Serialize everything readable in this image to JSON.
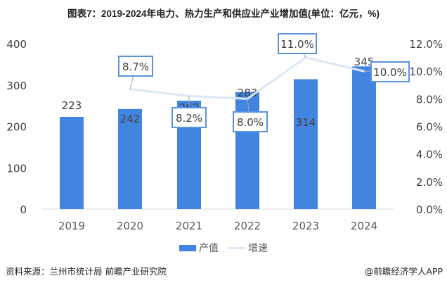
{
  "title": "图表7：2019-2024年电力、热力生产和供应业产业增加值(单位：亿元，%)",
  "chart_data": {
    "type": "bar",
    "title": "图表7：2019-2024年电力、热力生产和供应业产业增加值(单位：亿元，%)",
    "categories": [
      "2019",
      "2020",
      "2021",
      "2022",
      "2023",
      "2024"
    ],
    "series": [
      {
        "name": "产值",
        "type": "bar",
        "axis": "left",
        "values": [
          223,
          242,
          262,
          283,
          314,
          345
        ],
        "labels": [
          "223",
          "242",
          "262",
          "283",
          "314",
          "345"
        ],
        "color": "#4285e1"
      },
      {
        "name": "增速",
        "type": "line",
        "axis": "right",
        "values": [
          null,
          8.7,
          8.2,
          8.0,
          11.0,
          10.0
        ],
        "labels": [
          null,
          "8.7%",
          "8.2%",
          "8.0%",
          "11.0%",
          "10.0%"
        ],
        "color": "#dbe8f8"
      }
    ],
    "left_axis": {
      "ylim": [
        0,
        400
      ],
      "ticks": [
        "0",
        "100",
        "200",
        "300",
        "400"
      ]
    },
    "right_axis": {
      "ylim": [
        0,
        12
      ],
      "ticks": [
        "0.0%",
        "2.0%",
        "4.0%",
        "6.0%",
        "8.0%",
        "10.0%",
        "12.0%"
      ]
    },
    "grid": false,
    "legend": "bottom"
  },
  "legend": {
    "bar_label": "产值",
    "line_label": "增速"
  },
  "footer": {
    "source": "资料来源：兰州市统计局 前瞻产业研究院",
    "credit": "@前瞻经济学人APP"
  }
}
